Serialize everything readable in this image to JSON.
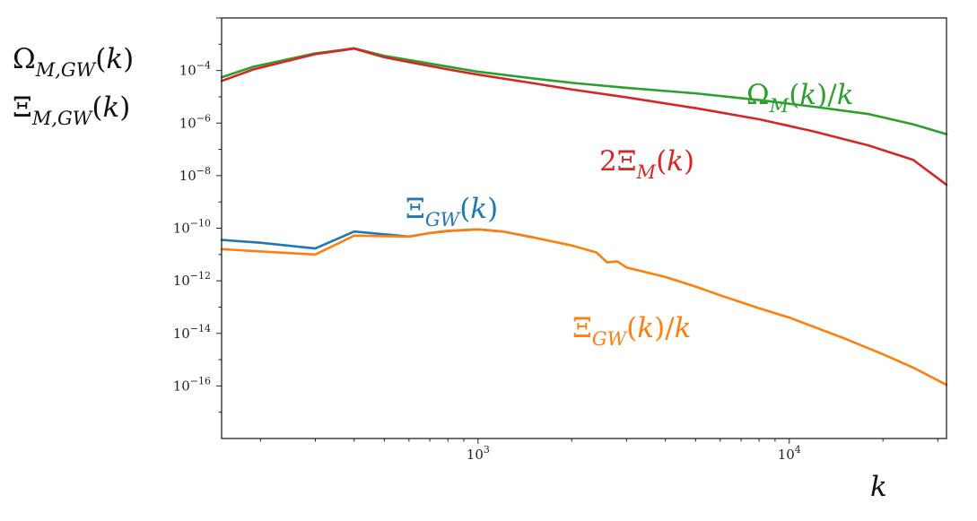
{
  "chart_data": {
    "type": "line",
    "xlabel": "k",
    "ylabel_lines": [
      "Ω_{M,GW}(k)",
      "Ξ_{M,GW}(k)"
    ],
    "xscale": "log",
    "yscale": "log",
    "xlim": [
      150,
      32000
    ],
    "ylim": [
      1e-18,
      0.01
    ],
    "grid": false,
    "x_ticks": [
      {
        "value": 1000,
        "base": "10",
        "exp": "3"
      },
      {
        "value": 10000,
        "base": "10",
        "exp": "4"
      }
    ],
    "y_ticks": [
      {
        "value": 0.0001,
        "base": "10",
        "exp": "−4"
      },
      {
        "value": 1e-06,
        "base": "10",
        "exp": "−6"
      },
      {
        "value": 1e-08,
        "base": "10",
        "exp": "−8"
      },
      {
        "value": 1e-10,
        "base": "10",
        "exp": "−10"
      },
      {
        "value": 1e-12,
        "base": "10",
        "exp": "−12"
      },
      {
        "value": 1e-14,
        "base": "10",
        "exp": "−14"
      },
      {
        "value": 1e-16,
        "base": "10",
        "exp": "−16"
      }
    ],
    "series": [
      {
        "key": "omega_m",
        "color": "#2ca02c",
        "annotation": {
          "pre": "",
          "sym": "Ω",
          "sub": "M",
          "post": "(k)/k"
        },
        "points": [
          [
            150,
            5.5e-05
          ],
          [
            190,
            0.00014
          ],
          [
            300,
            0.00045
          ],
          [
            400,
            0.0007
          ],
          [
            500,
            0.00036
          ],
          [
            600,
            0.00025
          ],
          [
            800,
            0.00014
          ],
          [
            1000,
            9e-05
          ],
          [
            1500,
            5e-05
          ],
          [
            2000,
            3.4e-05
          ],
          [
            3000,
            2.2e-05
          ],
          [
            5000,
            1.35e-05
          ],
          [
            8000,
            7.5e-06
          ],
          [
            12000,
            4.2e-06
          ],
          [
            18000,
            2.2e-06
          ],
          [
            25000,
            9e-07
          ],
          [
            32000,
            3.8e-07
          ]
        ]
      },
      {
        "key": "xi_m",
        "color": "#d62728",
        "annotation": {
          "pre": "2",
          "sym": "Ξ",
          "sub": "M",
          "post": "(k)"
        },
        "points": [
          [
            150,
            4e-05
          ],
          [
            190,
            0.00011
          ],
          [
            300,
            0.00042
          ],
          [
            400,
            0.00068
          ],
          [
            500,
            0.00032
          ],
          [
            600,
            0.00021
          ],
          [
            800,
            0.00011
          ],
          [
            1000,
            7e-05
          ],
          [
            1500,
            3.3e-05
          ],
          [
            2000,
            1.9e-05
          ],
          [
            3000,
            9.5e-06
          ],
          [
            5000,
            3.7e-06
          ],
          [
            8000,
            1.4e-06
          ],
          [
            12000,
            4.8e-07
          ],
          [
            18000,
            1.4e-07
          ],
          [
            25000,
            4e-08
          ],
          [
            32000,
            4.5e-09
          ]
        ]
      },
      {
        "key": "xi_gw",
        "color": "#1f77b4",
        "annotation": {
          "pre": "",
          "sym": "Ξ",
          "sub": "GW",
          "post": "(k)"
        },
        "points": [
          [
            150,
            3.6e-11
          ],
          [
            200,
            2.8e-11
          ],
          [
            300,
            1.7e-11
          ],
          [
            400,
            7.5e-11
          ],
          [
            600,
            4.8e-11
          ],
          [
            700,
            6.5e-11
          ],
          [
            800,
            7.8e-11
          ],
          [
            1000,
            9e-11
          ],
          [
            1200,
            7.5e-11
          ],
          [
            1500,
            4.5e-11
          ]
        ]
      },
      {
        "key": "xi_gw_over_k",
        "color": "#ff7f0e",
        "annotation": {
          "pre": "",
          "sym": "Ξ",
          "sub": "GW",
          "post": "(k)/k"
        },
        "points": [
          [
            150,
            1.6e-11
          ],
          [
            200,
            1.3e-11
          ],
          [
            300,
            1e-11
          ],
          [
            400,
            5.2e-11
          ],
          [
            600,
            4.8e-11
          ],
          [
            700,
            6.6e-11
          ],
          [
            800,
            8e-11
          ],
          [
            1000,
            9e-11
          ],
          [
            1200,
            7.5e-11
          ],
          [
            1500,
            4.5e-11
          ],
          [
            2000,
            2.2e-11
          ],
          [
            2400,
            1.2e-11
          ],
          [
            2600,
            5e-12
          ],
          [
            2800,
            5.5e-12
          ],
          [
            3000,
            3.2e-12
          ],
          [
            4000,
            1.4e-12
          ],
          [
            5000,
            6e-13
          ],
          [
            6000,
            2.8e-13
          ],
          [
            8000,
            9e-14
          ],
          [
            10000,
            4e-14
          ],
          [
            15000,
            6.5e-15
          ],
          [
            20000,
            1.6e-15
          ],
          [
            25000,
            5e-16
          ],
          [
            32000,
            1.1e-16
          ]
        ]
      }
    ]
  }
}
